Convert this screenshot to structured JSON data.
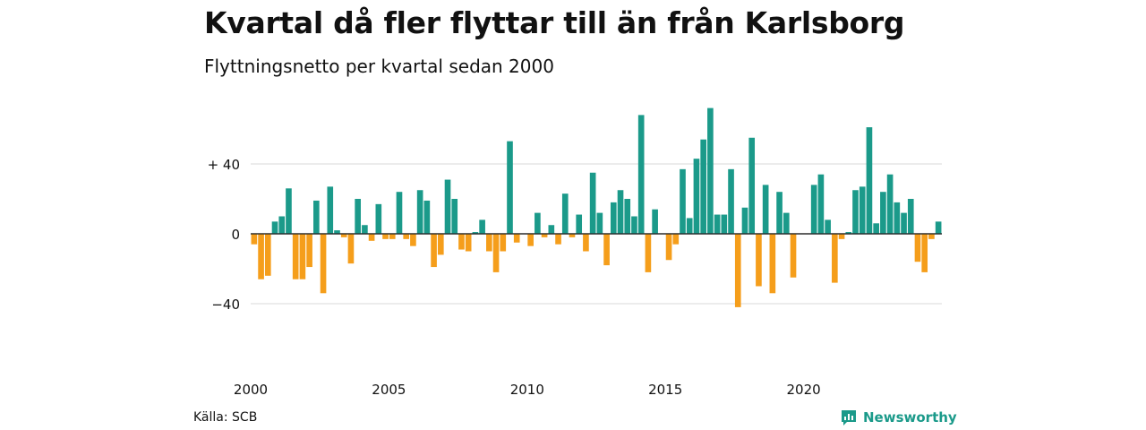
{
  "header": {
    "title": "Kvartal då fler flyttar till än från Karlsborg",
    "subtitle": "Flyttningsnetto per kvartal sedan 2000"
  },
  "footer": {
    "source": "Källa: SCB",
    "brand": "Newsworthy"
  },
  "colors": {
    "positive": "#1b9a8a",
    "negative": "#f59e1b",
    "grid": "#d9d9d9",
    "brand": "#1b9a8a"
  },
  "chart_data": {
    "type": "bar",
    "title": "Kvartal då fler flyttar till än från Karlsborg",
    "subtitle": "Flyttningsnetto per kvartal sedan 2000",
    "start_year": 2000,
    "periods_per_year": 4,
    "xtick_labels": [
      "2000",
      "2005",
      "2010",
      "2015",
      "2020"
    ],
    "ytick_values": [
      40,
      0,
      -40
    ],
    "ytick_labels": [
      "+ 40",
      "0",
      "−40"
    ],
    "ylim": [
      -62,
      80
    ],
    "grid": true,
    "values": [
      -6,
      -26,
      -24,
      7,
      10,
      26,
      -26,
      -26,
      -19,
      19,
      -34,
      27,
      2,
      -2,
      -17,
      20,
      5,
      -4,
      17,
      -3,
      -3,
      24,
      -3,
      -7,
      25,
      19,
      -19,
      -12,
      31,
      20,
      -9,
      -10,
      1,
      8,
      -10,
      -22,
      -10,
      53,
      -5,
      0,
      -7,
      12,
      -2,
      5,
      -6,
      23,
      -2,
      11,
      -10,
      35,
      12,
      -18,
      18,
      25,
      20,
      10,
      68,
      -22,
      14,
      0,
      -15,
      -6,
      37,
      9,
      43,
      54,
      72,
      11,
      11,
      37,
      -42,
      15,
      55,
      -30,
      28,
      -34,
      24,
      12,
      -25,
      0,
      0,
      28,
      34,
      8,
      -28,
      -3,
      1,
      25,
      27,
      61,
      6,
      24,
      34,
      18,
      12,
      20,
      -16,
      -22,
      -3,
      7
    ]
  }
}
